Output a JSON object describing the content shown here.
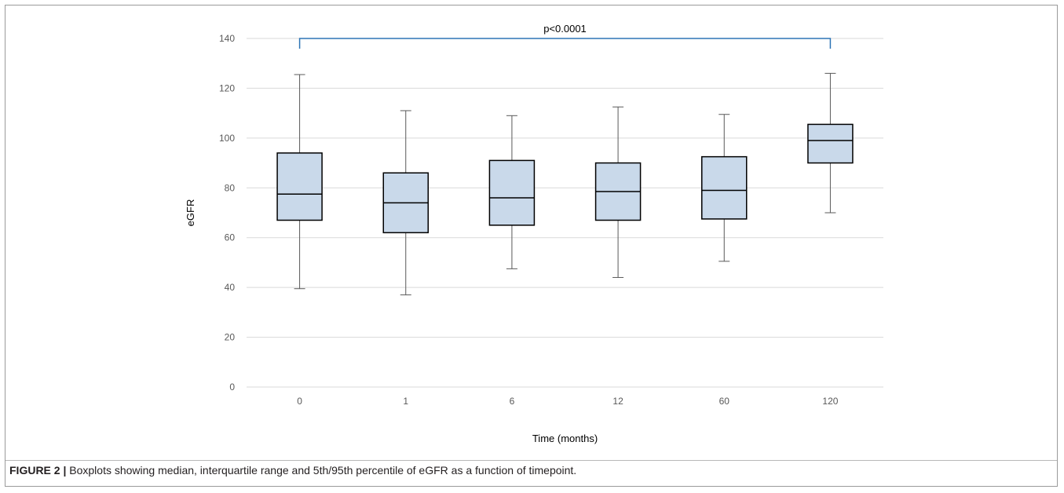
{
  "caption": {
    "label": "FIGURE 2 |",
    "text": " Boxplots showing median, interquartile range and 5th/95th percentile of eGFR as a function of timepoint."
  },
  "chart_data": {
    "type": "boxplot",
    "xlabel": "Time (months)",
    "ylabel": "eGFR",
    "ylim": [
      0,
      140
    ],
    "yticks": [
      0,
      20,
      40,
      60,
      80,
      100,
      120,
      140
    ],
    "grid": true,
    "categories": [
      "0",
      "1",
      "6",
      "12",
      "60",
      "120"
    ],
    "boxes": [
      {
        "category": "0",
        "whisker_low": 39.5,
        "q1": 67,
        "median": 77.5,
        "q3": 94,
        "whisker_high": 125.5
      },
      {
        "category": "1",
        "whisker_low": 37,
        "q1": 62,
        "median": 74,
        "q3": 86,
        "whisker_high": 111
      },
      {
        "category": "6",
        "whisker_low": 47.5,
        "q1": 65,
        "median": 76,
        "q3": 91,
        "whisker_high": 109
      },
      {
        "category": "12",
        "whisker_low": 44,
        "q1": 67,
        "median": 78.5,
        "q3": 90,
        "whisker_high": 112.5
      },
      {
        "category": "60",
        "whisker_low": 50.5,
        "q1": 67.5,
        "median": 79,
        "q3": 92.5,
        "whisker_high": 109.5
      },
      {
        "category": "120",
        "whisker_low": 70,
        "q1": 90,
        "median": 99,
        "q3": 105.5,
        "whisker_high": 126
      }
    ],
    "annotation": {
      "text": "p<0.0001",
      "from": "0",
      "to": "120",
      "y": 140
    },
    "colors": {
      "box_fill": "#c9d9ea",
      "box_stroke": "#000000",
      "whisker": "#595959",
      "gridline": "#d9d9d9",
      "bracket": "#2e75b6"
    }
  }
}
